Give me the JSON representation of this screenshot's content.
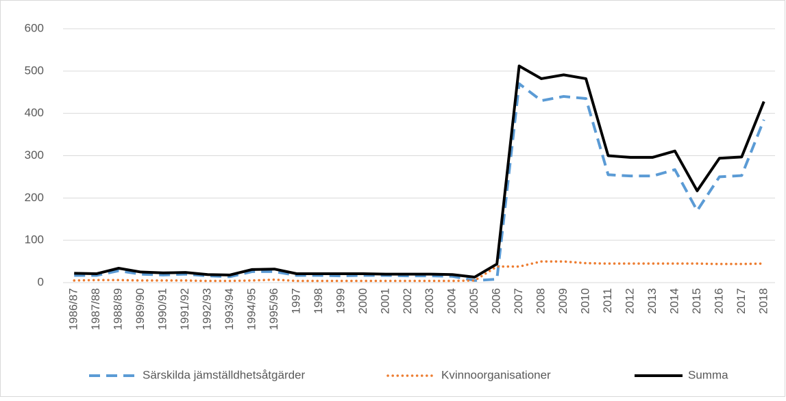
{
  "chart_data": {
    "type": "line",
    "categories": [
      "1986/87",
      "1987/88",
      "1988/89",
      "1989/90",
      "1990/91",
      "1991/92",
      "1992/93",
      "1993/94",
      "1994/95",
      "1995/96",
      "1997",
      "1998",
      "1999",
      "2000",
      "2001",
      "2002",
      "2003",
      "2004",
      "2005",
      "2006",
      "2007",
      "2008",
      "2009",
      "2010",
      "2011",
      "2012",
      "2013",
      "2014",
      "2015",
      "2016",
      "2017",
      "2018"
    ],
    "series": [
      {
        "name": "Särskilda jämställdhetsåtgärder",
        "color": "#5b9bd5",
        "dash": "dashed",
        "values": [
          17,
          17,
          28,
          20,
          18,
          20,
          16,
          14,
          26,
          26,
          17,
          17,
          16,
          17,
          17,
          16,
          16,
          15,
          5,
          8,
          470,
          430,
          440,
          435,
          255,
          252,
          252,
          267,
          170,
          250,
          253,
          385
        ]
      },
      {
        "name": "Kvinnoorganisationer",
        "color": "#ed7d31",
        "dash": "dotted",
        "values": [
          5,
          6,
          6,
          5,
          5,
          5,
          4,
          4,
          5,
          7,
          4,
          4,
          4,
          4,
          4,
          4,
          4,
          4,
          5,
          38,
          38,
          50,
          50,
          46,
          45,
          45,
          45,
          45,
          45,
          44,
          44,
          45
        ]
      },
      {
        "name": "Summa",
        "color": "#000000",
        "dash": "solid",
        "values": [
          22,
          21,
          34,
          25,
          23,
          24,
          19,
          18,
          31,
          32,
          21,
          21,
          21,
          21,
          20,
          20,
          20,
          19,
          13,
          44,
          512,
          482,
          491,
          482,
          300,
          296,
          296,
          311,
          217,
          294,
          297,
          428
        ]
      }
    ],
    "ylim": [
      0,
      600
    ],
    "yticks": [
      0,
      100,
      200,
      300,
      400,
      500,
      600
    ],
    "grid": true,
    "legend": "bottom"
  }
}
